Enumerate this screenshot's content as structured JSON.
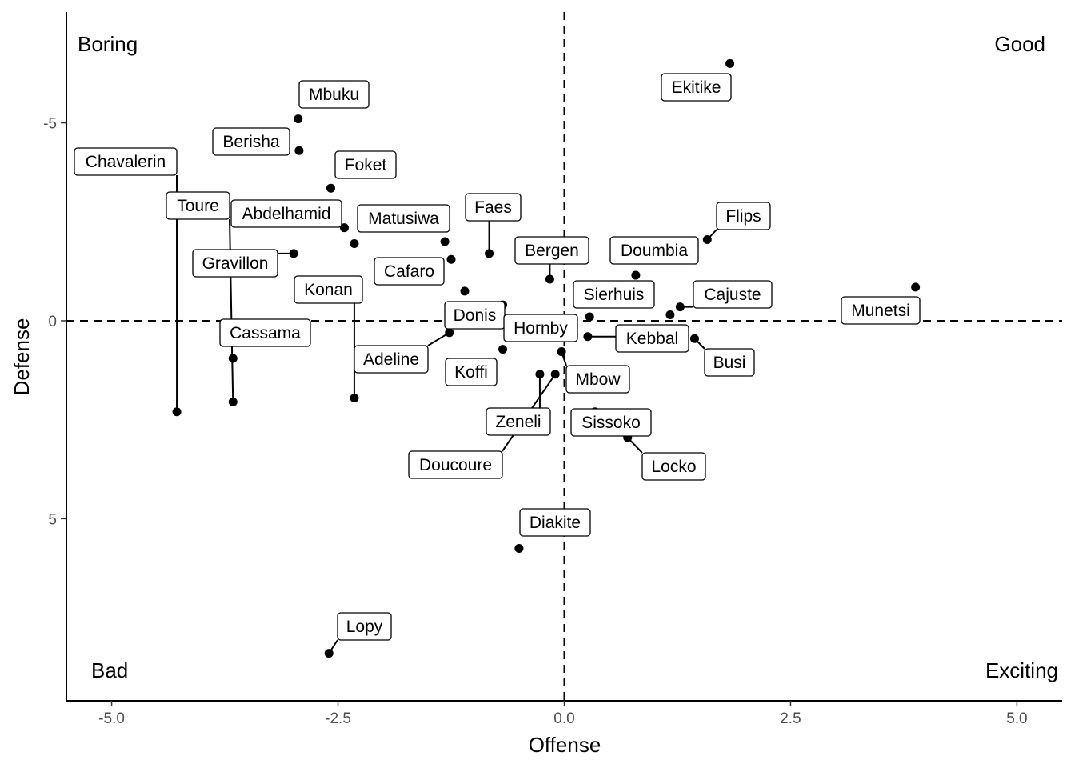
{
  "chart_data": {
    "type": "scatter",
    "xlabel": "Offense",
    "ylabel": "Defense",
    "xlim": [
      -5.5,
      5.5
    ],
    "ylim": [
      9.6,
      -7.8
    ],
    "y_reversed": true,
    "x_ticks": [
      -5.0,
      -2.5,
      0.0,
      2.5,
      5.0
    ],
    "x_tick_labels": [
      "-5.0",
      "-2.5",
      "0.0",
      "2.5",
      "5.0"
    ],
    "y_ticks": [
      -5,
      0,
      5
    ],
    "y_tick_labels": [
      "-5",
      "0",
      "5"
    ],
    "reference_lines": {
      "x": 0,
      "y": 0
    },
    "grid": false,
    "quadrant_labels": {
      "top_left": "Boring",
      "top_right": "Good",
      "bottom_left": "Bad",
      "bottom_right": "Exciting"
    },
    "points": [
      {
        "name": "Ekitike",
        "x": 1.83,
        "y": -6.5
      },
      {
        "name": "Mbuku",
        "x": -2.94,
        "y": -5.1
      },
      {
        "name": "Berisha",
        "x": -2.93,
        "y": -4.3
      },
      {
        "name": "Chavalerin",
        "x": -4.28,
        "y": 2.3
      },
      {
        "name": "Foket",
        "x": -2.58,
        "y": -3.35
      },
      {
        "name": "Toure",
        "x": -3.66,
        "y": 2.05
      },
      {
        "name": "Abdelhamid",
        "x": -2.43,
        "y": -2.35
      },
      {
        "name": "Matusiwa",
        "x": -2.32,
        "y": -1.95
      },
      {
        "name": "Faes",
        "x": -0.83,
        "y": -1.7
      },
      {
        "name": "Gravillon",
        "x": -2.99,
        "y": -1.7
      },
      {
        "name": "Konan",
        "x": -2.32,
        "y": 1.95
      },
      {
        "name": "Cafaro",
        "x": -1.25,
        "y": -1.55
      },
      {
        "name": "Bergen",
        "x": -0.16,
        "y": -1.05
      },
      {
        "name": "Flips",
        "x": 1.58,
        "y": -2.05
      },
      {
        "name": "Doumbia",
        "x": 0.79,
        "y": -1.15
      },
      {
        "name": "Munetsi",
        "x": 3.88,
        "y": -0.85
      },
      {
        "name": "Sierhuis",
        "x": 0.28,
        "y": -0.1
      },
      {
        "name": "Cajuste",
        "x": 1.28,
        "y": -0.35
      },
      {
        "name": "Cassama",
        "x": -3.66,
        "y": 0.95
      },
      {
        "name": "Donis",
        "x": -1.1,
        "y": -0.75
      },
      {
        "name": "Adeline",
        "x": -1.27,
        "y": 0.3
      },
      {
        "name": "Hornby",
        "x": -0.68,
        "y": -0.4
      },
      {
        "name": "Kebbal",
        "x": 0.26,
        "y": 0.4
      },
      {
        "name": "Busi",
        "x": 1.44,
        "y": 0.45
      },
      {
        "name": "Koffi",
        "x": -0.68,
        "y": 0.72
      },
      {
        "name": "Mbow",
        "x": -0.03,
        "y": 0.78
      },
      {
        "name": "Zeneli",
        "x": -0.27,
        "y": 1.35
      },
      {
        "name": "Doucoure",
        "x": -0.1,
        "y": 1.35
      },
      {
        "name": "Sissoko",
        "x": 0.34,
        "y": 2.3
      },
      {
        "name": "Locko",
        "x": 0.7,
        "y": 2.95
      },
      {
        "name": "Diakite",
        "x": -0.5,
        "y": 5.75
      },
      {
        "name": "Lopy",
        "x": -2.6,
        "y": 8.4
      },
      {
        "name": "Cafaro-2",
        "x": -1.32,
        "y": -2.0
      },
      {
        "name": "Sierhuis-2",
        "x": 1.17,
        "y": -0.15
      }
    ]
  }
}
